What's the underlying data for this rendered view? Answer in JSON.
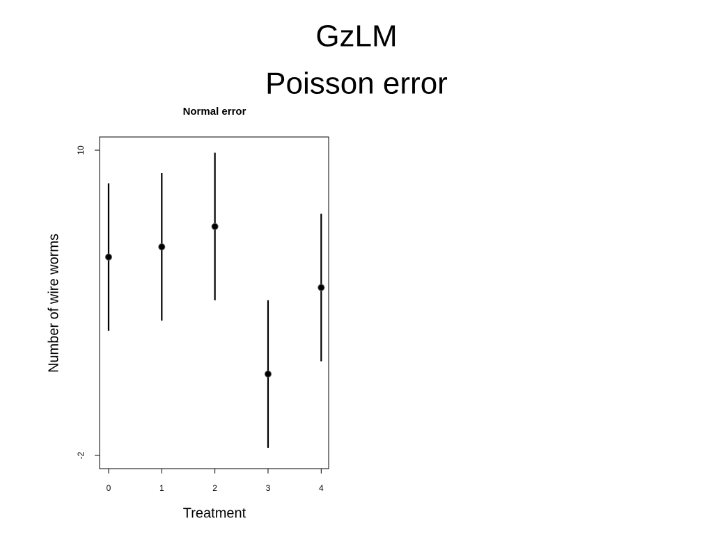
{
  "slide_title": [
    "GzLM",
    "Poisson error"
  ],
  "chart_data": {
    "type": "errorbar",
    "title": "Normal error",
    "x_label": "Treatment",
    "y_label": "Number of wire worms",
    "x": [
      0,
      1,
      2,
      3,
      4
    ],
    "values": [
      5.8,
      6.2,
      7.0,
      1.2,
      4.6
    ],
    "errors": [
      2.9,
      2.9,
      2.9,
      2.9,
      2.9
    ],
    "color": "#000000",
    "xlim": [
      -0.17,
      4.14
    ],
    "xticks": [
      0,
      1,
      2,
      3,
      4
    ],
    "ylim": [
      -2.52,
      10.52
    ],
    "yticks": [
      -2,
      10
    ]
  }
}
